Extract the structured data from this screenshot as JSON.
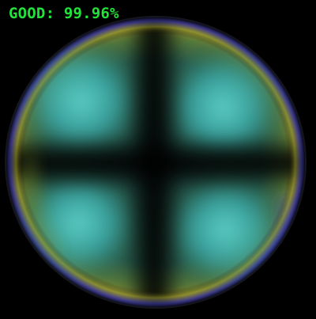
{
  "overlay": {
    "status": "GOOD",
    "separator": ": ",
    "confidence": "99.96%",
    "color": "#22e33a"
  },
  "image": {
    "subject": "polarized-stress-pattern-disc-icon",
    "background_color": "#000000"
  }
}
